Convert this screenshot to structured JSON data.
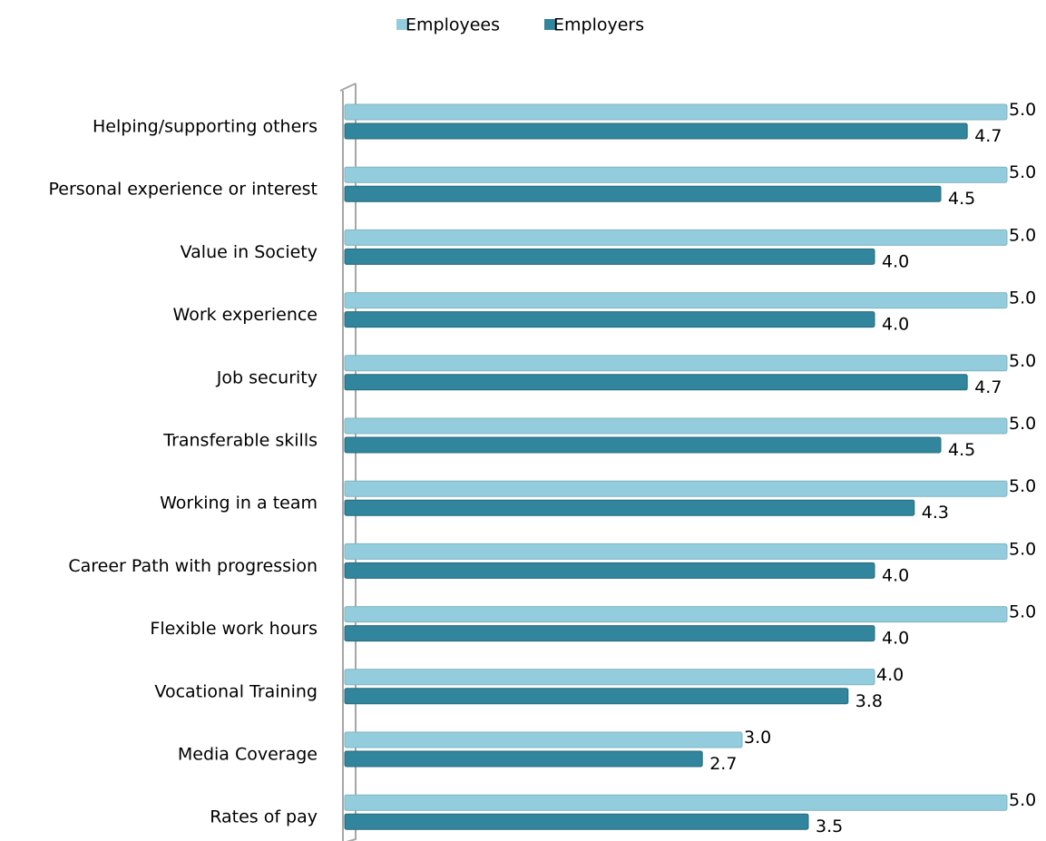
{
  "chart_data": {
    "type": "bar",
    "orientation": "horizontal",
    "categories": [
      "Helping/supporting others",
      "Personal experience or interest",
      "Value in Society",
      "Work experience",
      "Job security",
      "Transferable skills",
      "Working in a team",
      "Career Path with progression",
      "Flexible work hours",
      "Vocational Training",
      "Media Coverage",
      "Rates of pay"
    ],
    "series": [
      {
        "name": "Employees",
        "color": "#93cddd",
        "values": [
          5,
          5,
          5,
          5,
          5,
          5,
          5,
          5,
          5,
          4,
          3,
          5
        ],
        "value_labels": [
          "5.0",
          "5.0",
          "5.0",
          "5.0",
          "5.0",
          "5.0",
          "5.0",
          "5.0",
          "5.0",
          "4.0",
          "3.0",
          "5.0"
        ]
      },
      {
        "name": "Employers",
        "color": "#31859c",
        "values": [
          4.7,
          4.5,
          4,
          4,
          4.7,
          4.5,
          4.3,
          4,
          4,
          3.8,
          2.7,
          3.5
        ],
        "value_labels": [
          "4.7",
          "4.5",
          "4.0",
          "4.0",
          "4.7",
          "4.5",
          "4.3",
          "4.0",
          "4.0",
          "3.8",
          "2.7",
          "3.5"
        ]
      }
    ],
    "xlim": [
      0,
      5
    ],
    "legend": "top",
    "grid": false
  }
}
